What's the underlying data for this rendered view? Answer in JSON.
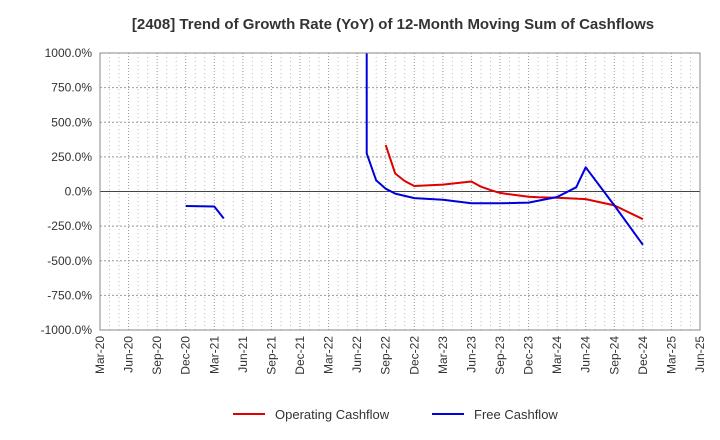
{
  "chart_data": {
    "type": "line",
    "title": "[2408]  Trend of Growth Rate (YoY) of 12-Month Moving Sum of Cashflows",
    "xlabel": "",
    "ylabel": "",
    "ylim": [
      -1000,
      1000
    ],
    "y_ticks": [
      1000,
      750,
      500,
      250,
      0,
      -250,
      -500,
      -750,
      -1000
    ],
    "y_tick_labels": [
      "1000.0%",
      "750.0%",
      "500.0%",
      "250.0%",
      "0.0%",
      "-250.0%",
      "-500.0%",
      "-750.0%",
      "-1000.0%"
    ],
    "x_tick_labels": [
      "Mar-20",
      "Jun-20",
      "Sep-20",
      "Dec-20",
      "Mar-21",
      "Jun-21",
      "Sep-21",
      "Dec-21",
      "Mar-22",
      "Jun-22",
      "Sep-22",
      "Dec-22",
      "Mar-23",
      "Jun-23",
      "Sep-23",
      "Dec-23",
      "Mar-24",
      "Jun-24",
      "Sep-24",
      "Dec-24",
      "Mar-25",
      "Jun-25"
    ],
    "x_range_months": [
      "2020-03",
      "2025-06"
    ],
    "grid": true,
    "legend_position": "bottom",
    "series": [
      {
        "name": "Operating Cashflow",
        "color": "#e00000",
        "points": [
          [
            "2022-09",
            335
          ],
          [
            "2022-10",
            130
          ],
          [
            "2022-11",
            75
          ],
          [
            "2022-12",
            40
          ],
          [
            "2023-03",
            50
          ],
          [
            "2023-06",
            72
          ],
          [
            "2023-07",
            35
          ],
          [
            "2023-08",
            10
          ],
          [
            "2023-09",
            -10
          ],
          [
            "2023-10",
            -20
          ],
          [
            "2023-12",
            -38
          ],
          [
            "2024-01",
            -42
          ],
          [
            "2024-03",
            -45
          ],
          [
            "2024-06",
            -55
          ],
          [
            "2024-09",
            -100
          ],
          [
            "2024-12",
            -200
          ]
        ]
      },
      {
        "name": "Free Cashflow",
        "color": "#0000dd",
        "segments": [
          [
            [
              "2020-12",
              -105
            ],
            [
              "2021-03",
              -108
            ],
            [
              "2021-04",
              -195
            ]
          ],
          [
            [
              "2022-07",
              1000
            ],
            [
              "2022-07",
              275
            ],
            [
              "2022-08",
              80
            ],
            [
              "2022-09",
              20
            ],
            [
              "2022-10",
              -15
            ],
            [
              "2022-12",
              -48
            ],
            [
              "2023-03",
              -60
            ],
            [
              "2023-06",
              -85
            ],
            [
              "2023-09",
              -85
            ],
            [
              "2023-12",
              -80
            ],
            [
              "2024-03",
              -40
            ],
            [
              "2024-05",
              30
            ],
            [
              "2024-06",
              175
            ],
            [
              "2024-09",
              -100
            ],
            [
              "2024-12",
              -385
            ]
          ]
        ]
      }
    ]
  }
}
